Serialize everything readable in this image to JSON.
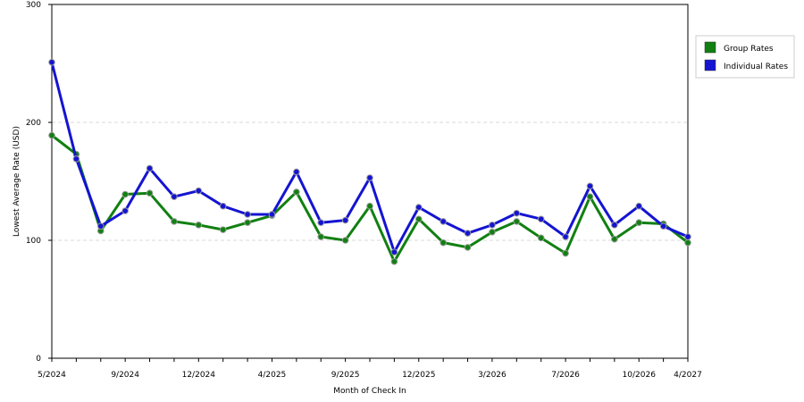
{
  "chart_data": {
    "type": "line",
    "title": "",
    "xlabel": "Month of Check In",
    "ylabel": "Lowest Average Rate (USD)",
    "ylim": [
      0,
      300
    ],
    "y_ticks": [
      "0",
      "100",
      "200",
      "300"
    ],
    "x_tick_labels": [
      "5/2024",
      "9/2024",
      "12/2024",
      "4/2025",
      "9/2025",
      "12/2025",
      "3/2026",
      "7/2026",
      "10/2026",
      "4/2027"
    ],
    "x_tick_indices": [
      0,
      3,
      6,
      9,
      12,
      15,
      18,
      21,
      24,
      26
    ],
    "grid": "horizontal dashed",
    "legend_placement": "right",
    "series": [
      {
        "name": "Group Rates",
        "color": "#118011",
        "values": [
          189,
          173,
          108,
          139,
          140,
          116,
          113,
          109,
          115,
          121,
          141,
          103,
          100,
          129,
          82,
          118,
          98,
          94,
          107,
          116,
          102,
          89,
          137,
          101,
          115,
          114,
          98
        ]
      },
      {
        "name": "Individual Rates",
        "color": "#1414d2",
        "values": [
          251,
          169,
          112,
          125,
          161,
          137,
          142,
          129,
          122,
          122,
          158,
          115,
          117,
          153,
          90,
          128,
          116,
          106,
          113,
          123,
          118,
          103,
          146,
          113,
          129,
          112,
          103
        ]
      }
    ]
  }
}
